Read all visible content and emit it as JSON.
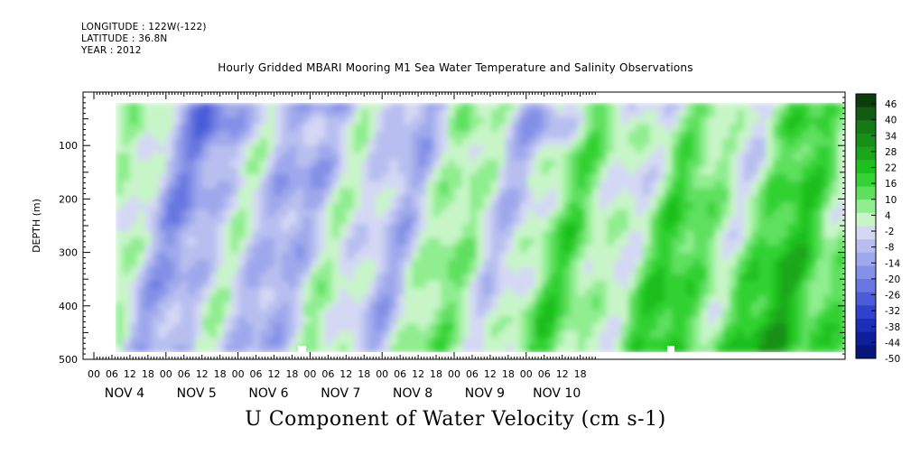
{
  "header": {
    "longitude": "LONGITUDE : 122W(-122)",
    "latitude": "LATITUDE : 36.8N",
    "year": "YEAR : 2012"
  },
  "chart_data": {
    "type": "heatmap",
    "title": "Hourly Gridded MBARI Mooring M1 Sea Water Temperature and Salinity Observations",
    "variable": "U Component of Water Velocity (cm s-1)",
    "ylabel": "DEPTH (m)",
    "ylim": [
      500,
      0
    ],
    "y_ticks": [
      100,
      200,
      300,
      400,
      500
    ],
    "x_hour_ticks": [
      "00",
      "06",
      "12",
      "18",
      "00",
      "06",
      "12",
      "18",
      "00",
      "06",
      "12",
      "18",
      "00",
      "06",
      "12",
      "18",
      "00",
      "06",
      "12",
      "18",
      "00",
      "06",
      "12",
      "18",
      "00",
      "06",
      "12",
      "18"
    ],
    "x_day_labels": [
      "NOV 4",
      "NOV 5",
      "NOV 6",
      "NOV 7",
      "NOV 8",
      "NOV 9",
      "NOV 10"
    ],
    "colorbar": {
      "levels": [
        46,
        40,
        34,
        28,
        22,
        16,
        10,
        4,
        -2,
        -8,
        -14,
        -20,
        -26,
        -32,
        -38,
        -44,
        -50
      ],
      "colors": [
        "#0b3d0b",
        "#125c12",
        "#147a14",
        "#178f17",
        "#1aa61a",
        "#1fbf1f",
        "#33d133",
        "#5ee05e",
        "#90ee90",
        "#c8f5c8",
        "#d4d8f4",
        "#b8bff0",
        "#9fa8ec",
        "#8390e6",
        "#6776e0",
        "#4a5cd8",
        "#2e42cc",
        "#1a2fb8",
        "#0d1f99",
        "#08157a"
      ]
    },
    "grid": false,
    "legend": "colorbar-right"
  }
}
